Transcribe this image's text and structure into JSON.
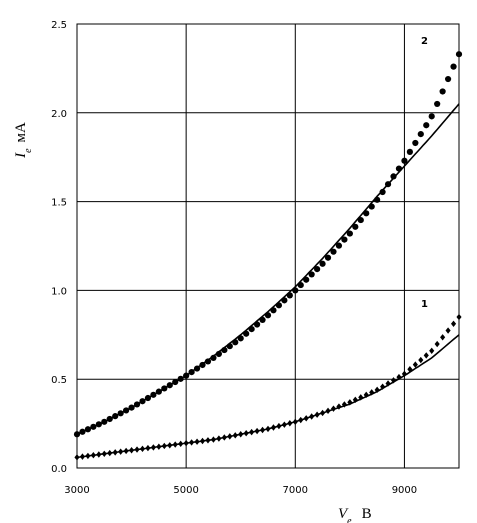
{
  "chart_data": {
    "type": "scatter",
    "xlabel": "V",
    "xlabel_sub": "e",
    "xlabel_unit": "В",
    "ylabel": "I",
    "ylabel_sub": "e",
    "ylabel_unit": "мА",
    "xlim": [
      3000,
      10000
    ],
    "ylim": [
      0,
      2.5
    ],
    "xticks": [
      "3000",
      "5000",
      "7000",
      "9000"
    ],
    "yticks": [
      "0.0",
      "0.5",
      "1.0",
      "1.5",
      "2.0",
      "2.5"
    ],
    "grid": true,
    "series": [
      {
        "name": "1",
        "marker": "diamond",
        "points": {
          "x": [
            3000,
            3500,
            4000,
            4500,
            5000,
            5500,
            6000,
            6500,
            7000,
            7500,
            8000,
            8500,
            9000,
            9500,
            10000
          ],
          "y": [
            0.06,
            0.08,
            0.1,
            0.12,
            0.14,
            0.16,
            0.19,
            0.22,
            0.26,
            0.31,
            0.37,
            0.44,
            0.53,
            0.66,
            0.85
          ]
        },
        "fit": {
          "x": [
            3000,
            3500,
            4000,
            4500,
            5000,
            5500,
            6000,
            6500,
            7000,
            7500,
            8000,
            8500,
            9000,
            9500,
            10000
          ],
          "y": [
            0.06,
            0.08,
            0.1,
            0.12,
            0.14,
            0.16,
            0.19,
            0.22,
            0.26,
            0.31,
            0.36,
            0.43,
            0.52,
            0.62,
            0.75
          ]
        }
      },
      {
        "name": "2",
        "marker": "circle",
        "points": {
          "x": [
            3000,
            3500,
            4000,
            4500,
            5000,
            5500,
            6000,
            6500,
            7000,
            7500,
            8000,
            8500,
            9000,
            9500,
            10000
          ],
          "y": [
            0.19,
            0.26,
            0.34,
            0.43,
            0.52,
            0.62,
            0.73,
            0.86,
            1.0,
            1.15,
            1.32,
            1.51,
            1.73,
            1.98,
            2.33
          ]
        },
        "fit": {
          "x": [
            3000,
            3500,
            4000,
            4500,
            5000,
            5500,
            6000,
            6500,
            7000,
            7500,
            8000,
            8500,
            9000,
            9500,
            10000
          ],
          "y": [
            0.19,
            0.26,
            0.34,
            0.43,
            0.52,
            0.63,
            0.75,
            0.88,
            1.02,
            1.18,
            1.35,
            1.53,
            1.7,
            1.87,
            2.05
          ]
        }
      }
    ]
  }
}
